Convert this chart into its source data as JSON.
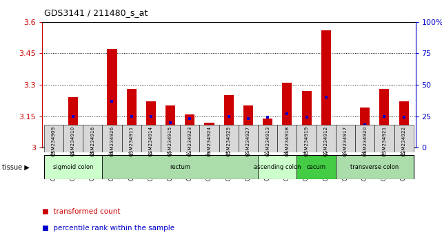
{
  "title": "GDS3141 / 211480_s_at",
  "samples": [
    "GSM234909",
    "GSM234910",
    "GSM234916",
    "GSM234926",
    "GSM234911",
    "GSM234914",
    "GSM234915",
    "GSM234923",
    "GSM234924",
    "GSM234925",
    "GSM234927",
    "GSM234913",
    "GSM234918",
    "GSM234919",
    "GSM234912",
    "GSM234917",
    "GSM234920",
    "GSM234921",
    "GSM234922"
  ],
  "transformed_count": [
    3.06,
    3.24,
    3.08,
    3.47,
    3.28,
    3.22,
    3.2,
    3.16,
    3.12,
    3.25,
    3.2,
    3.14,
    3.31,
    3.27,
    3.56,
    3.01,
    3.19,
    3.28,
    3.22
  ],
  "percentile_rank": [
    10,
    25,
    12,
    37,
    25,
    25,
    20,
    23,
    17,
    25,
    23,
    24,
    27,
    24,
    40,
    13,
    18,
    25,
    24
  ],
  "ymin": 3.0,
  "ymax": 3.6,
  "yticks": [
    3.0,
    3.15,
    3.3,
    3.45,
    3.6
  ],
  "ytick_labels": [
    "3",
    "3.15",
    "3.3",
    "3.45",
    "3.6"
  ],
  "right_yticks": [
    0,
    25,
    50,
    75,
    100
  ],
  "right_ylabels": [
    "0",
    "25",
    "50",
    "75",
    "100%"
  ],
  "tissue_groups": [
    {
      "label": "sigmoid colon",
      "start": 0,
      "end": 3,
      "color": "#ccffcc"
    },
    {
      "label": "rectum",
      "start": 3,
      "end": 11,
      "color": "#aaddaa"
    },
    {
      "label": "ascending colon",
      "start": 11,
      "end": 13,
      "color": "#ccffcc"
    },
    {
      "label": "cecum",
      "start": 13,
      "end": 15,
      "color": "#44cc44"
    },
    {
      "label": "transverse colon",
      "start": 15,
      "end": 19,
      "color": "#aaddaa"
    }
  ],
  "bar_color": "#cc0000",
  "dot_color": "#0000cc",
  "background_color": "#ffffff",
  "tick_label_color": "#cc0000",
  "right_tick_color": "#0000cc",
  "bar_width": 0.5
}
